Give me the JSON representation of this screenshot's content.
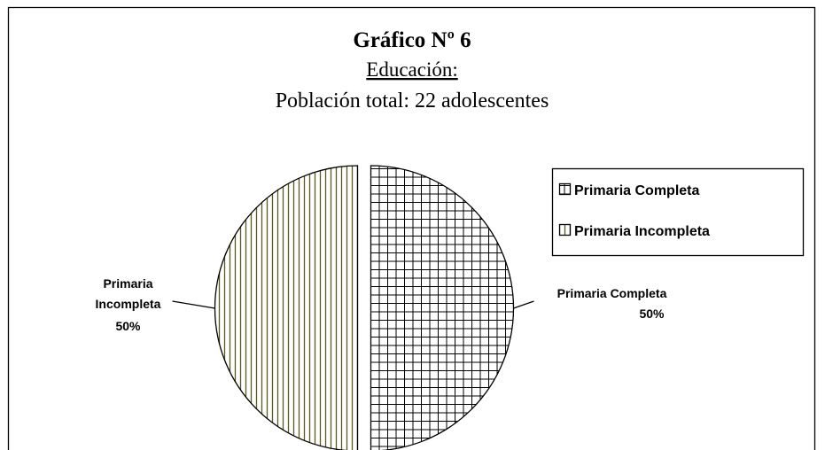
{
  "chart_data": {
    "type": "pie",
    "title": "Gráfico Nº 6",
    "subtitle": "Educación:",
    "subtitle2": "Población total: 22 adolescentes",
    "categories": [
      "Primaria Completa",
      "Primaria Incompleta"
    ],
    "values": [
      50,
      50
    ],
    "value_labels": [
      "50%",
      "50%"
    ],
    "colors": [
      "#000000",
      "#5a5a1e"
    ],
    "patterns": [
      "crosshatch",
      "vertical-lines"
    ],
    "legend": "right"
  }
}
